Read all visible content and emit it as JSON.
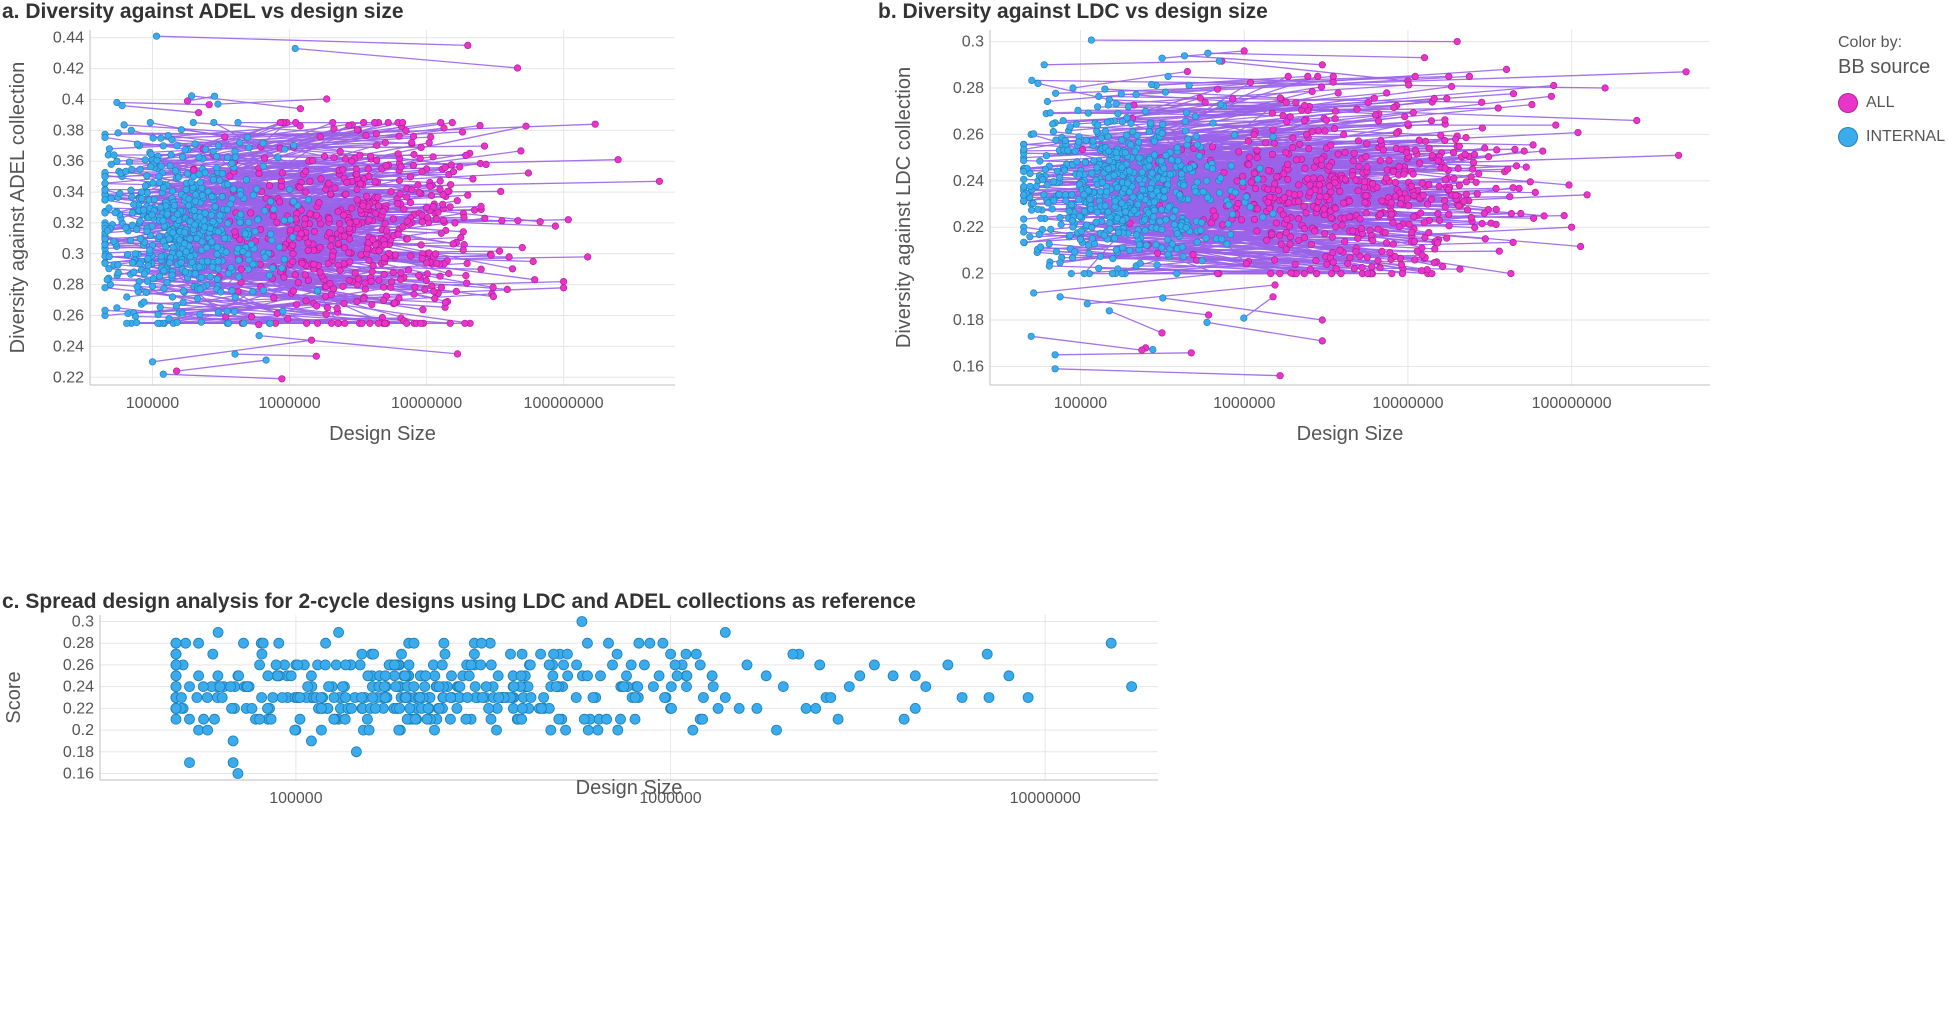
{
  "legend": {
    "title_small": "Color by:",
    "title": "BB source",
    "items": [
      {
        "label": "ALL",
        "color": "#e834c9"
      },
      {
        "label": "INTERNAL",
        "color": "#3aabec"
      }
    ]
  },
  "colors": {
    "line": "#9a63e8",
    "all": "#e834c9",
    "internal": "#3aabec",
    "grid": "#e6e6e6",
    "axis": "#bfbfbf"
  },
  "chart_data": [
    {
      "id": "a",
      "type": "line",
      "title": "a. Diversity against ADEL vs design size",
      "xlabel": "Design Size",
      "ylabel": "Diversity against ADEL collection",
      "xscale": "log",
      "xlim": [
        35000,
        650000000
      ],
      "ylim": [
        0.215,
        0.445
      ],
      "xticks": [
        100000,
        1000000,
        10000000,
        100000000
      ],
      "xtick_labels": [
        "100000",
        "1000000",
        "10000000",
        "100000000"
      ],
      "yticks": [
        0.22,
        0.24,
        0.26,
        0.28,
        0.3,
        0.32,
        0.34,
        0.36,
        0.38,
        0.4,
        0.42,
        0.44
      ],
      "ytick_labels": [
        "0.22",
        "0.24",
        "0.26",
        "0.28",
        "0.3",
        "0.32",
        "0.34",
        "0.36",
        "0.38",
        "0.4",
        "0.42",
        "0.44"
      ],
      "series": [
        {
          "name": "ALL",
          "x": [
            20000000,
            250000000,
            500000000,
            170000000,
            40000000,
            150000000,
            20000000,
            5000000,
            3000000,
            10000000,
            10000000,
            700000,
            1500000,
            9000000,
            25000000,
            50000000,
            60000000,
            100000000,
            100000000,
            30000000,
            2000000,
            1500000,
            3500000,
            700000,
            500000,
            1200000,
            150000,
            180000
          ],
          "y": [
            0.435,
            0.361,
            0.347,
            0.384,
            0.298,
            0.298,
            0.338,
            0.372,
            0.362,
            0.355,
            0.3,
            0.33,
            0.29,
            0.285,
            0.29,
            0.304,
            0.295,
            0.282,
            0.278,
            0.274,
            0.305,
            0.268,
            0.272,
            0.31,
            0.312,
            0.394,
            0.224,
            0.399
          ]
        },
        {
          "name": "INTERNAL",
          "x": [
            1100000,
            55000,
            60000,
            70000,
            120000,
            80000,
            50000,
            55000,
            300000,
            200000,
            60000,
            90000,
            130000,
            50000,
            45000,
            60000,
            75000,
            110000,
            150000,
            200000,
            350000,
            500000,
            700000,
            80000,
            65000,
            55000,
            45000,
            90000,
            100000,
            120000,
            400000,
            600000
          ],
          "y": [
            0.433,
            0.398,
            0.396,
            0.38,
            0.37,
            0.37,
            0.358,
            0.36,
            0.397,
            0.35,
            0.35,
            0.34,
            0.33,
            0.336,
            0.31,
            0.32,
            0.3,
            0.31,
            0.305,
            0.3,
            0.31,
            0.29,
            0.3,
            0.282,
            0.272,
            0.265,
            0.26,
            0.275,
            0.23,
            0.222,
            0.235,
            0.247
          ]
        }
      ]
    },
    {
      "id": "b",
      "type": "line",
      "title": "b. Diversity against LDC vs design size",
      "xlabel": "Design Size",
      "ylabel": "Diversity against LDC collection",
      "xscale": "log",
      "xlim": [
        28000,
        700000000
      ],
      "ylim": [
        0.152,
        0.305
      ],
      "xticks": [
        100000,
        1000000,
        10000000,
        100000000
      ],
      "xtick_labels": [
        "100000",
        "1000000",
        "10000000",
        "100000000"
      ],
      "yticks": [
        0.16,
        0.18,
        0.2,
        0.22,
        0.24,
        0.26,
        0.28,
        0.3
      ],
      "ytick_labels": [
        "0.16",
        "0.18",
        "0.2",
        "0.22",
        "0.24",
        "0.26",
        "0.28",
        "0.3"
      ],
      "series": [
        {
          "name": "ALL",
          "x": [
            20000000,
            500000000,
            160000000,
            40000000,
            250000000,
            450000000,
            80000000,
            10000000,
            3000000,
            1000000,
            1500000,
            2500000,
            5000000,
            20000000,
            90000000,
            100000000,
            60000000,
            15000000,
            3000000,
            3000000,
            1500000,
            250000,
            700000,
            1200000,
            6000000
          ],
          "y": [
            0.3,
            0.287,
            0.28,
            0.288,
            0.266,
            0.251,
            0.264,
            0.283,
            0.29,
            0.296,
            0.262,
            0.272,
            0.24,
            0.23,
            0.225,
            0.22,
            0.235,
            0.205,
            0.18,
            0.171,
            0.19,
            0.168,
            0.2,
            0.25,
            0.215
          ]
        },
        {
          "name": "INTERNAL",
          "x": [
            600000,
            60000,
            55000,
            90000,
            150000,
            250000,
            70000,
            50000,
            45000,
            55000,
            80000,
            120000,
            50000,
            45000,
            55000,
            65000,
            100000,
            150000,
            200000,
            75000,
            110000,
            150000,
            50000,
            70000,
            70000
          ],
          "y": [
            0.295,
            0.29,
            0.282,
            0.28,
            0.275,
            0.27,
            0.265,
            0.26,
            0.25,
            0.24,
            0.245,
            0.235,
            0.23,
            0.22,
            0.21,
            0.205,
            0.215,
            0.225,
            0.21,
            0.19,
            0.187,
            0.184,
            0.173,
            0.165,
            0.159
          ]
        }
      ]
    },
    {
      "id": "c",
      "type": "scatter",
      "title": "c. Spread design analysis for 2-cycle designs using LDC and ADEL collections as reference",
      "xlabel": "Design Size",
      "ylabel": "Score",
      "xscale": "log",
      "xlim": [
        30000,
        20000000
      ],
      "ylim": [
        0.154,
        0.306
      ],
      "xticks": [
        100000,
        1000000,
        10000000
      ],
      "xtick_labels": [
        "100000",
        "1000000",
        "10000000"
      ],
      "yticks": [
        0.16,
        0.18,
        0.2,
        0.22,
        0.24,
        0.26,
        0.28,
        0.3
      ],
      "ytick_labels": [
        "0.16",
        "0.18",
        "0.2",
        "0.22",
        "0.24",
        "0.26",
        "0.28",
        "0.3"
      ],
      "series": [
        {
          "name": "INTERNAL",
          "x": [
            580000,
            62000,
            130000,
            1400000,
            55000,
            90000,
            120000,
            200000,
            330000,
            600000,
            880000,
            15000000,
            60000,
            150000,
            250000,
            450000,
            720000,
            1000000,
            2200000,
            7000000,
            50000,
            80000,
            100000,
            140000,
            180000,
            300000,
            420000,
            700000,
            1200000,
            1600000,
            2500000,
            3500000,
            5500000,
            55000,
            70000,
            110000,
            200000,
            380000,
            650000,
            1100000,
            1800000,
            3200000,
            4500000,
            8000000,
            52000,
            75000,
            125000,
            160000,
            270000,
            500000,
            900000,
            1300000,
            2000000,
            3000000,
            4800000,
            17000000,
            58000,
            95000,
            170000,
            320000,
            560000,
            820000,
            1400000,
            2600000,
            6000000,
            9000000,
            50000,
            85000,
            150000,
            240000,
            460000,
            1000000,
            1700000,
            2300000,
            4500000,
            52000,
            78000,
            130000,
            210000,
            390000,
            610000,
            1200000,
            2800000,
            4200000,
            55000,
            100000,
            190000,
            640000,
            110000,
            68000,
            145000,
            52000,
            68000,
            70000
          ],
          "y": [
            0.3,
            0.29,
            0.29,
            0.29,
            0.28,
            0.28,
            0.28,
            0.28,
            0.28,
            0.28,
            0.28,
            0.28,
            0.27,
            0.27,
            0.27,
            0.27,
            0.27,
            0.27,
            0.27,
            0.27,
            0.26,
            0.26,
            0.26,
            0.26,
            0.26,
            0.26,
            0.26,
            0.26,
            0.26,
            0.26,
            0.26,
            0.26,
            0.26,
            0.25,
            0.25,
            0.25,
            0.25,
            0.25,
            0.25,
            0.25,
            0.25,
            0.25,
            0.25,
            0.25,
            0.24,
            0.24,
            0.24,
            0.24,
            0.24,
            0.24,
            0.24,
            0.24,
            0.24,
            0.24,
            0.24,
            0.24,
            0.23,
            0.23,
            0.23,
            0.23,
            0.23,
            0.23,
            0.23,
            0.23,
            0.23,
            0.23,
            0.22,
            0.22,
            0.22,
            0.22,
            0.22,
            0.22,
            0.22,
            0.22,
            0.22,
            0.21,
            0.21,
            0.21,
            0.21,
            0.21,
            0.21,
            0.21,
            0.21,
            0.21,
            0.2,
            0.2,
            0.2,
            0.2,
            0.19,
            0.19,
            0.18,
            0.17,
            0.17,
            0.16
          ]
        }
      ]
    }
  ]
}
